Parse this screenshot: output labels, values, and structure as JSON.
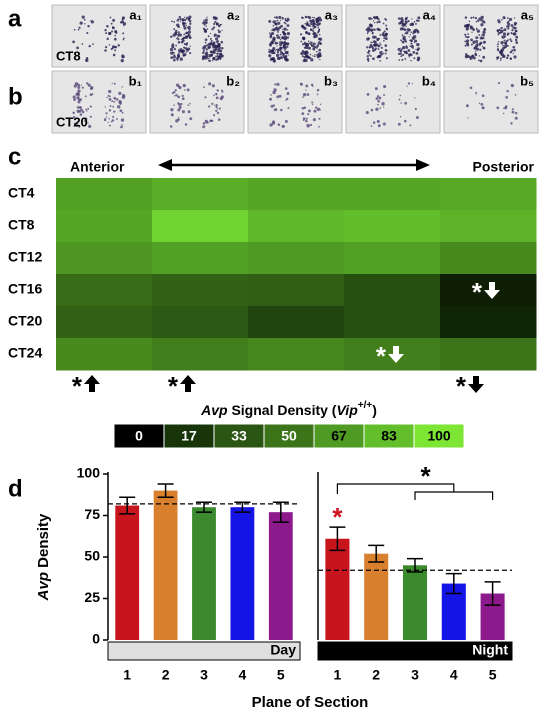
{
  "panel_labels": {
    "a": "a",
    "b": "b",
    "c": "c",
    "d": "d"
  },
  "micrographs": [
    {
      "row_label": "CT8",
      "images": [
        "a₁",
        "a₂",
        "a₃",
        "a₄",
        "a₅"
      ]
    },
    {
      "row_label": "CT20",
      "images": [
        "b₁",
        "b₂",
        "b₃",
        "b₄",
        "b₅"
      ]
    }
  ],
  "heatmap": {
    "column_start": "Anterior",
    "column_end": "Posterior",
    "rows": [
      "CT4",
      "CT8",
      "CT12",
      "CT16",
      "CT20",
      "CT24"
    ],
    "values": [
      [
        70,
        75,
        72,
        72,
        73
      ],
      [
        72,
        92,
        80,
        82,
        78
      ],
      [
        65,
        70,
        67,
        70,
        60
      ],
      [
        45,
        40,
        38,
        30,
        10
      ],
      [
        40,
        35,
        25,
        30,
        12
      ],
      [
        60,
        55,
        58,
        55,
        50
      ]
    ],
    "cell_marks": [
      {
        "row": 3,
        "column": 4,
        "text": "*",
        "direction": "down",
        "color": "#ffffff"
      },
      {
        "row": 5,
        "column": 3,
        "text": "*",
        "direction": "down",
        "color": "#ffffff"
      }
    ],
    "column_marks": [
      {
        "column": 0,
        "text": "*",
        "direction": "up",
        "color": "#000000"
      },
      {
        "column": 1,
        "text": "*",
        "direction": "up",
        "color": "#000000"
      },
      {
        "column": 4,
        "text": "*",
        "direction": "down",
        "color": "#000000"
      }
    ],
    "scale": {
      "title_parts": [
        "Avp",
        " Signal Density (",
        "Vip",
        "+/+",
        ")"
      ],
      "range": [
        0,
        100
      ],
      "ticks": [
        0,
        17,
        33,
        50,
        67,
        83,
        100
      ],
      "colors": [
        "#000000",
        "#173509",
        "#2a5512",
        "#3c7419",
        "#4f9a22",
        "#62bf2b",
        "#7de534"
      ]
    }
  },
  "chart_data": [
    {
      "type": "bar",
      "group_label": "Day",
      "categories": [
        "1",
        "2",
        "3",
        "4",
        "5"
      ],
      "values": [
        81,
        90,
        80,
        80,
        77
      ],
      "errors": [
        5,
        4,
        3,
        3,
        6
      ],
      "colors": [
        "#c8141c",
        "#d8802e",
        "#3b8a2e",
        "#1414e6",
        "#8c1a8c"
      ],
      "mean_line": 82,
      "ylim": [
        0,
        100
      ],
      "yticks": [
        0,
        25,
        50,
        75,
        100
      ],
      "ylabel_parts": [
        "Avp",
        " Density"
      ],
      "xlabel": "Plane of Section"
    },
    {
      "type": "bar",
      "group_label": "Night",
      "categories": [
        "1",
        "2",
        "3",
        "4",
        "5"
      ],
      "values": [
        61,
        52,
        45,
        34,
        28
      ],
      "errors": [
        7,
        5,
        4,
        6,
        7
      ],
      "colors": [
        "#c8141c",
        "#d8802e",
        "#3b8a2e",
        "#1414e6",
        "#8c1a8c"
      ],
      "mean_line": 42,
      "ylim": [
        0,
        100
      ],
      "highlight": {
        "bar": 0,
        "text": "*",
        "color": "#d0101c"
      },
      "comparison": {
        "from": 0,
        "to": [
          2,
          4
        ],
        "text": "*"
      }
    }
  ]
}
